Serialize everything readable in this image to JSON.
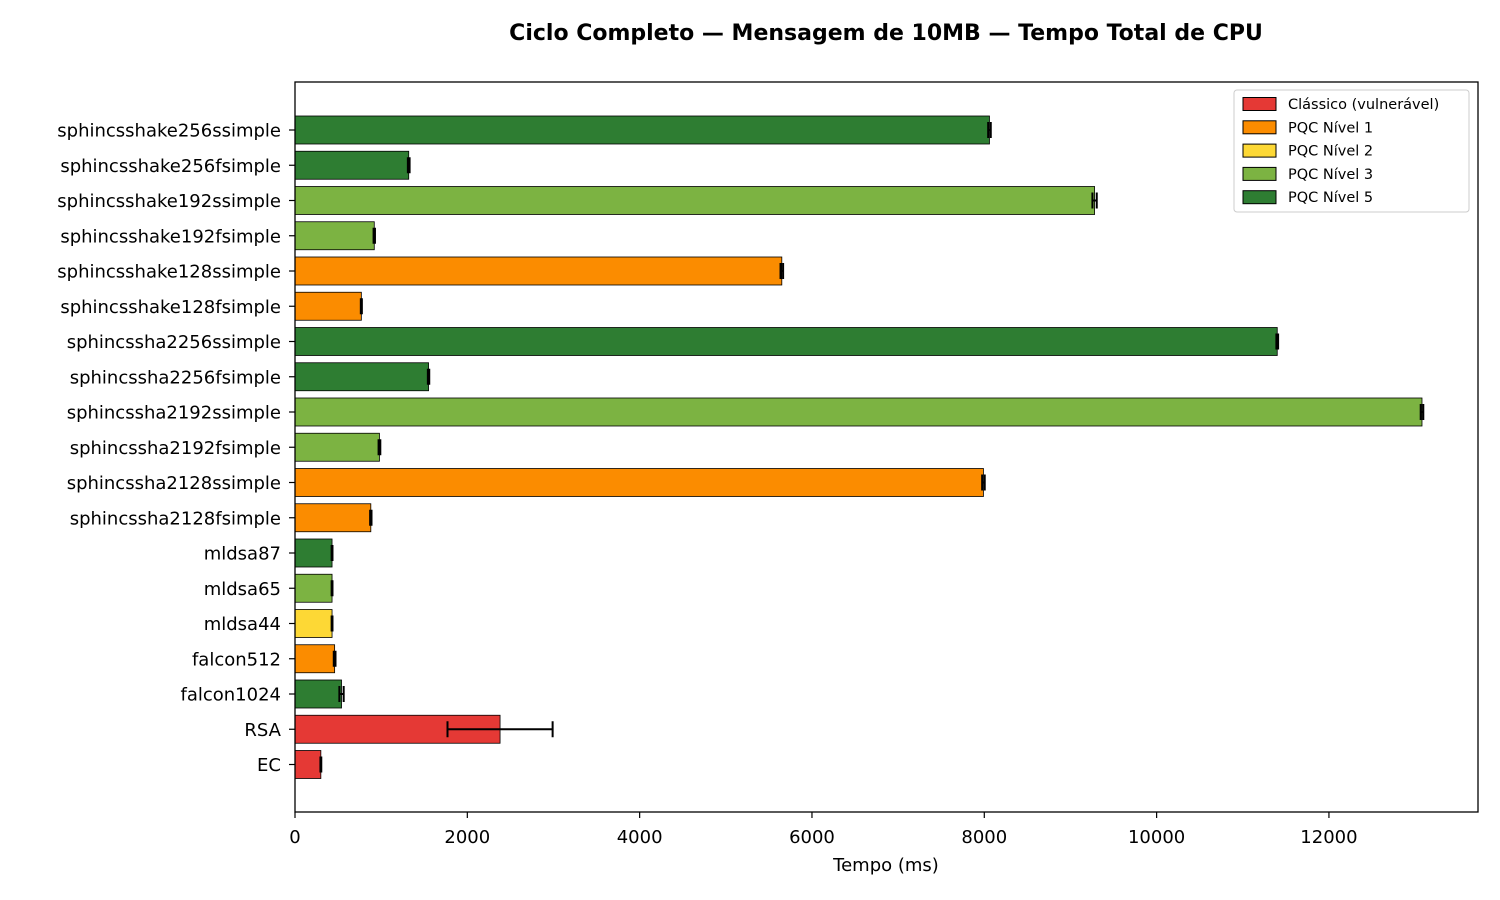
{
  "chart_data": {
    "type": "bar",
    "orientation": "horizontal",
    "title": "Ciclo Completo — Mensagem de 10MB — Tempo Total de CPU",
    "xlabel": "Tempo (ms)",
    "ylabel": "",
    "xlim": [
      0,
      13730
    ],
    "xticks": [
      0,
      2000,
      4000,
      6000,
      8000,
      10000,
      12000
    ],
    "grid": false,
    "legend_position": "top-right",
    "groups": [
      {
        "name": "Clássico (vulnerável)",
        "color": "#e53935"
      },
      {
        "name": "PQC Nível 1",
        "color": "#fb8c00"
      },
      {
        "name": "PQC Nível 2",
        "color": "#fdd835"
      },
      {
        "name": "PQC Nível 3",
        "color": "#7cb342"
      },
      {
        "name": "PQC Nível 5",
        "color": "#2e7d32"
      }
    ],
    "categories": [
      "sphincsshake256ssimple",
      "sphincsshake256fsimple",
      "sphincsshake192ssimple",
      "sphincsshake192fsimple",
      "sphincsshake128ssimple",
      "sphincsshake128fsimple",
      "sphincssha2256ssimple",
      "sphincssha2256fsimple",
      "sphincssha2192ssimple",
      "sphincssha2192fsimple",
      "sphincssha2128ssimple",
      "sphincssha2128fsimple",
      "mldsa87",
      "mldsa65",
      "mldsa44",
      "falcon512",
      "falcon1024",
      "RSA",
      "EC"
    ],
    "values": [
      8060,
      1320,
      9280,
      920,
      5650,
      770,
      11400,
      1550,
      13080,
      980,
      7990,
      880,
      430,
      430,
      430,
      460,
      540,
      2380,
      300
    ],
    "errors": [
      15,
      10,
      25,
      8,
      15,
      6,
      10,
      8,
      15,
      10,
      15,
      8,
      5,
      5,
      5,
      10,
      25,
      610,
      5
    ],
    "group_index": [
      4,
      4,
      3,
      3,
      1,
      1,
      4,
      4,
      3,
      3,
      1,
      1,
      4,
      3,
      2,
      1,
      4,
      0,
      0
    ]
  }
}
